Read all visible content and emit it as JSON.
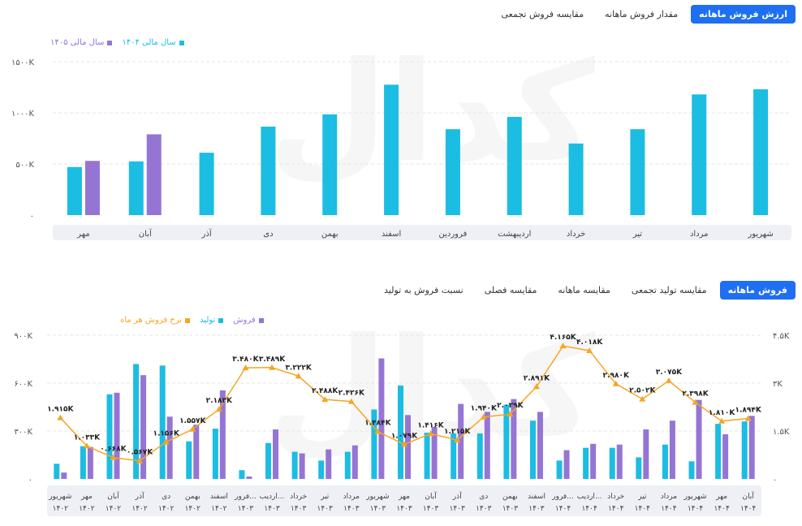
{
  "top_tabs": [
    {
      "label": "ارزش فروش ماهانه",
      "active": true
    },
    {
      "label": "مقدار فروش ماهانه",
      "active": false
    },
    {
      "label": "مقایسه فروش تجمعی",
      "active": false
    }
  ],
  "bottom_tabs": [
    {
      "label": "فروش ماهانه",
      "active": true
    },
    {
      "label": "مقایسه تولید تجمعی",
      "active": false
    },
    {
      "label": "مقایسه ماهانه",
      "active": false
    },
    {
      "label": "مقایسه فصلی",
      "active": false
    },
    {
      "label": "نسبت فروش به تولید",
      "active": false
    }
  ],
  "watermark_text": "کدال",
  "colors": {
    "cyan": "#1bbde3",
    "purple": "#9575d4",
    "orange": "#f5a623",
    "accent": "#1e6ff2"
  },
  "chart_data": [
    {
      "type": "bar",
      "categories": [
        "شهریور",
        "مرداد",
        "تیر",
        "خرداد",
        "اردیبهشت",
        "فروردین",
        "اسفند",
        "بهمن",
        "دی",
        "آذر",
        "آبان",
        "مهر"
      ],
      "series": [
        {
          "name": "سال مالی ۱۴۰۴",
          "color": "#1bbde3",
          "values": [
            1230,
            1180,
            840,
            700,
            960,
            840,
            1275,
            985,
            865,
            610,
            525,
            470
          ]
        },
        {
          "name": "سال مالی ۱۴۰۵",
          "color": "#9575d4",
          "values": [
            null,
            null,
            null,
            null,
            null,
            null,
            null,
            null,
            null,
            null,
            790,
            530
          ]
        }
      ],
      "yticks": [
        "۰",
        "۵۰۰K",
        "۱۰۰۰K",
        "۱۵۰۰K"
      ],
      "ylim": [
        0,
        1500
      ],
      "grid": true,
      "legend": "top-left"
    },
    {
      "type": "bar",
      "categories": [
        "شهریور ۱۴۰۲",
        "مهر ۱۴۰۲",
        "آبان ۱۴۰۲",
        "آذر ۱۴۰۲",
        "دی ۱۴۰۲",
        "بهمن ۱۴۰۲",
        "اسفند ۱۴۰۲",
        "فرور... ۱۴۰۳",
        "اردیب... ۱۴۰۳",
        "خرداد ۱۴۰۳",
        "تیر ۱۴۰۳",
        "مرداد ۱۴۰۳",
        "شهریور ۱۴۰۳",
        "مهر ۱۴۰۳",
        "آبان ۱۴۰۳",
        "آذر ۱۴۰۳",
        "دی ۱۴۰۳",
        "بهمن ۱۴۰۳",
        "اسفند ۱۴۰۳",
        "فرور... ۱۴۰۴",
        "اردیب... ۱۴۰۴",
        "خرداد ۱۴۰۴",
        "تیر ۱۴۰۴",
        "مرداد ۱۴۰۴",
        "شهریور ۱۴۰۴",
        "مهر ۱۴۰۴",
        "آبان ۱۴۰۴"
      ],
      "series": [
        {
          "name": "فروش",
          "color": "#9575d4",
          "values": [
            40,
            200,
            540,
            650,
            390,
            340,
            555,
            15,
            310,
            160,
            185,
            210,
            755,
            400,
            325,
            470,
            420,
            500,
            420,
            180,
            220,
            215,
            310,
            365,
            495,
            280,
            395
          ]
        },
        {
          "name": "تولید",
          "color": "#1bbde3",
          "values": [
            95,
            205,
            530,
            720,
            710,
            235,
            315,
            55,
            225,
            170,
            115,
            170,
            435,
            585,
            290,
            285,
            285,
            465,
            365,
            115,
            195,
            195,
            135,
            215,
            110,
            345,
            360
          ]
        },
        {
          "name": "نرخ فروش هر ماه",
          "color": "#f5a623",
          "axis": "right",
          "values": [
            1915,
            1033,
            668,
            567,
            1156,
            1557,
            2183,
            3480,
            3489,
            3222,
            2488,
            2426,
            1484,
            1079,
            1416,
            1215,
            1940,
            2029,
            2891,
            4165,
            4018,
            2980,
            2502,
            3075,
            2398,
            1810,
            1894
          ]
        }
      ],
      "point_labels": [
        "۱.۹۱۵K",
        "۱.۰۳۳K",
        "۰.۶۶۸K",
        "۰.۵۶۷K",
        "۱.۱۵۶K",
        "۱.۵۵۷K",
        "۲.۱۸۳K",
        "۳.۴۸۰K",
        "۳.۴۸۹K",
        "۳.۲۲۲K",
        "۲.۴۸۸K",
        "۲.۴۲۶K",
        "۱.۴۸۴K",
        "۱.۰۷۹K",
        "۱.۴۱۶K",
        "۱.۲۱۵K",
        "۱.۹۴۰K",
        "۲.۰۲۹K",
        "۲.۸۹۱K",
        "۴.۱۶۵K",
        "۴.۰۱۸K",
        "۲.۹۸۰K",
        "۲.۵۰۲K",
        "۳.۰۷۵K",
        "۲.۳۹۸K",
        "۱.۸۱۰K",
        "۱.۸۹۴K"
      ],
      "yticks_left": [
        "۰",
        "۳۰۰K",
        "۶۰۰K",
        "۹۰۰K"
      ],
      "yticks_right": [
        "۰",
        "۱.۵K",
        "۳K",
        "۴.۵K"
      ],
      "ylim_left": [
        0,
        900
      ],
      "ylim_right": [
        0,
        4500
      ],
      "grid": true,
      "legend": "top-left"
    }
  ]
}
